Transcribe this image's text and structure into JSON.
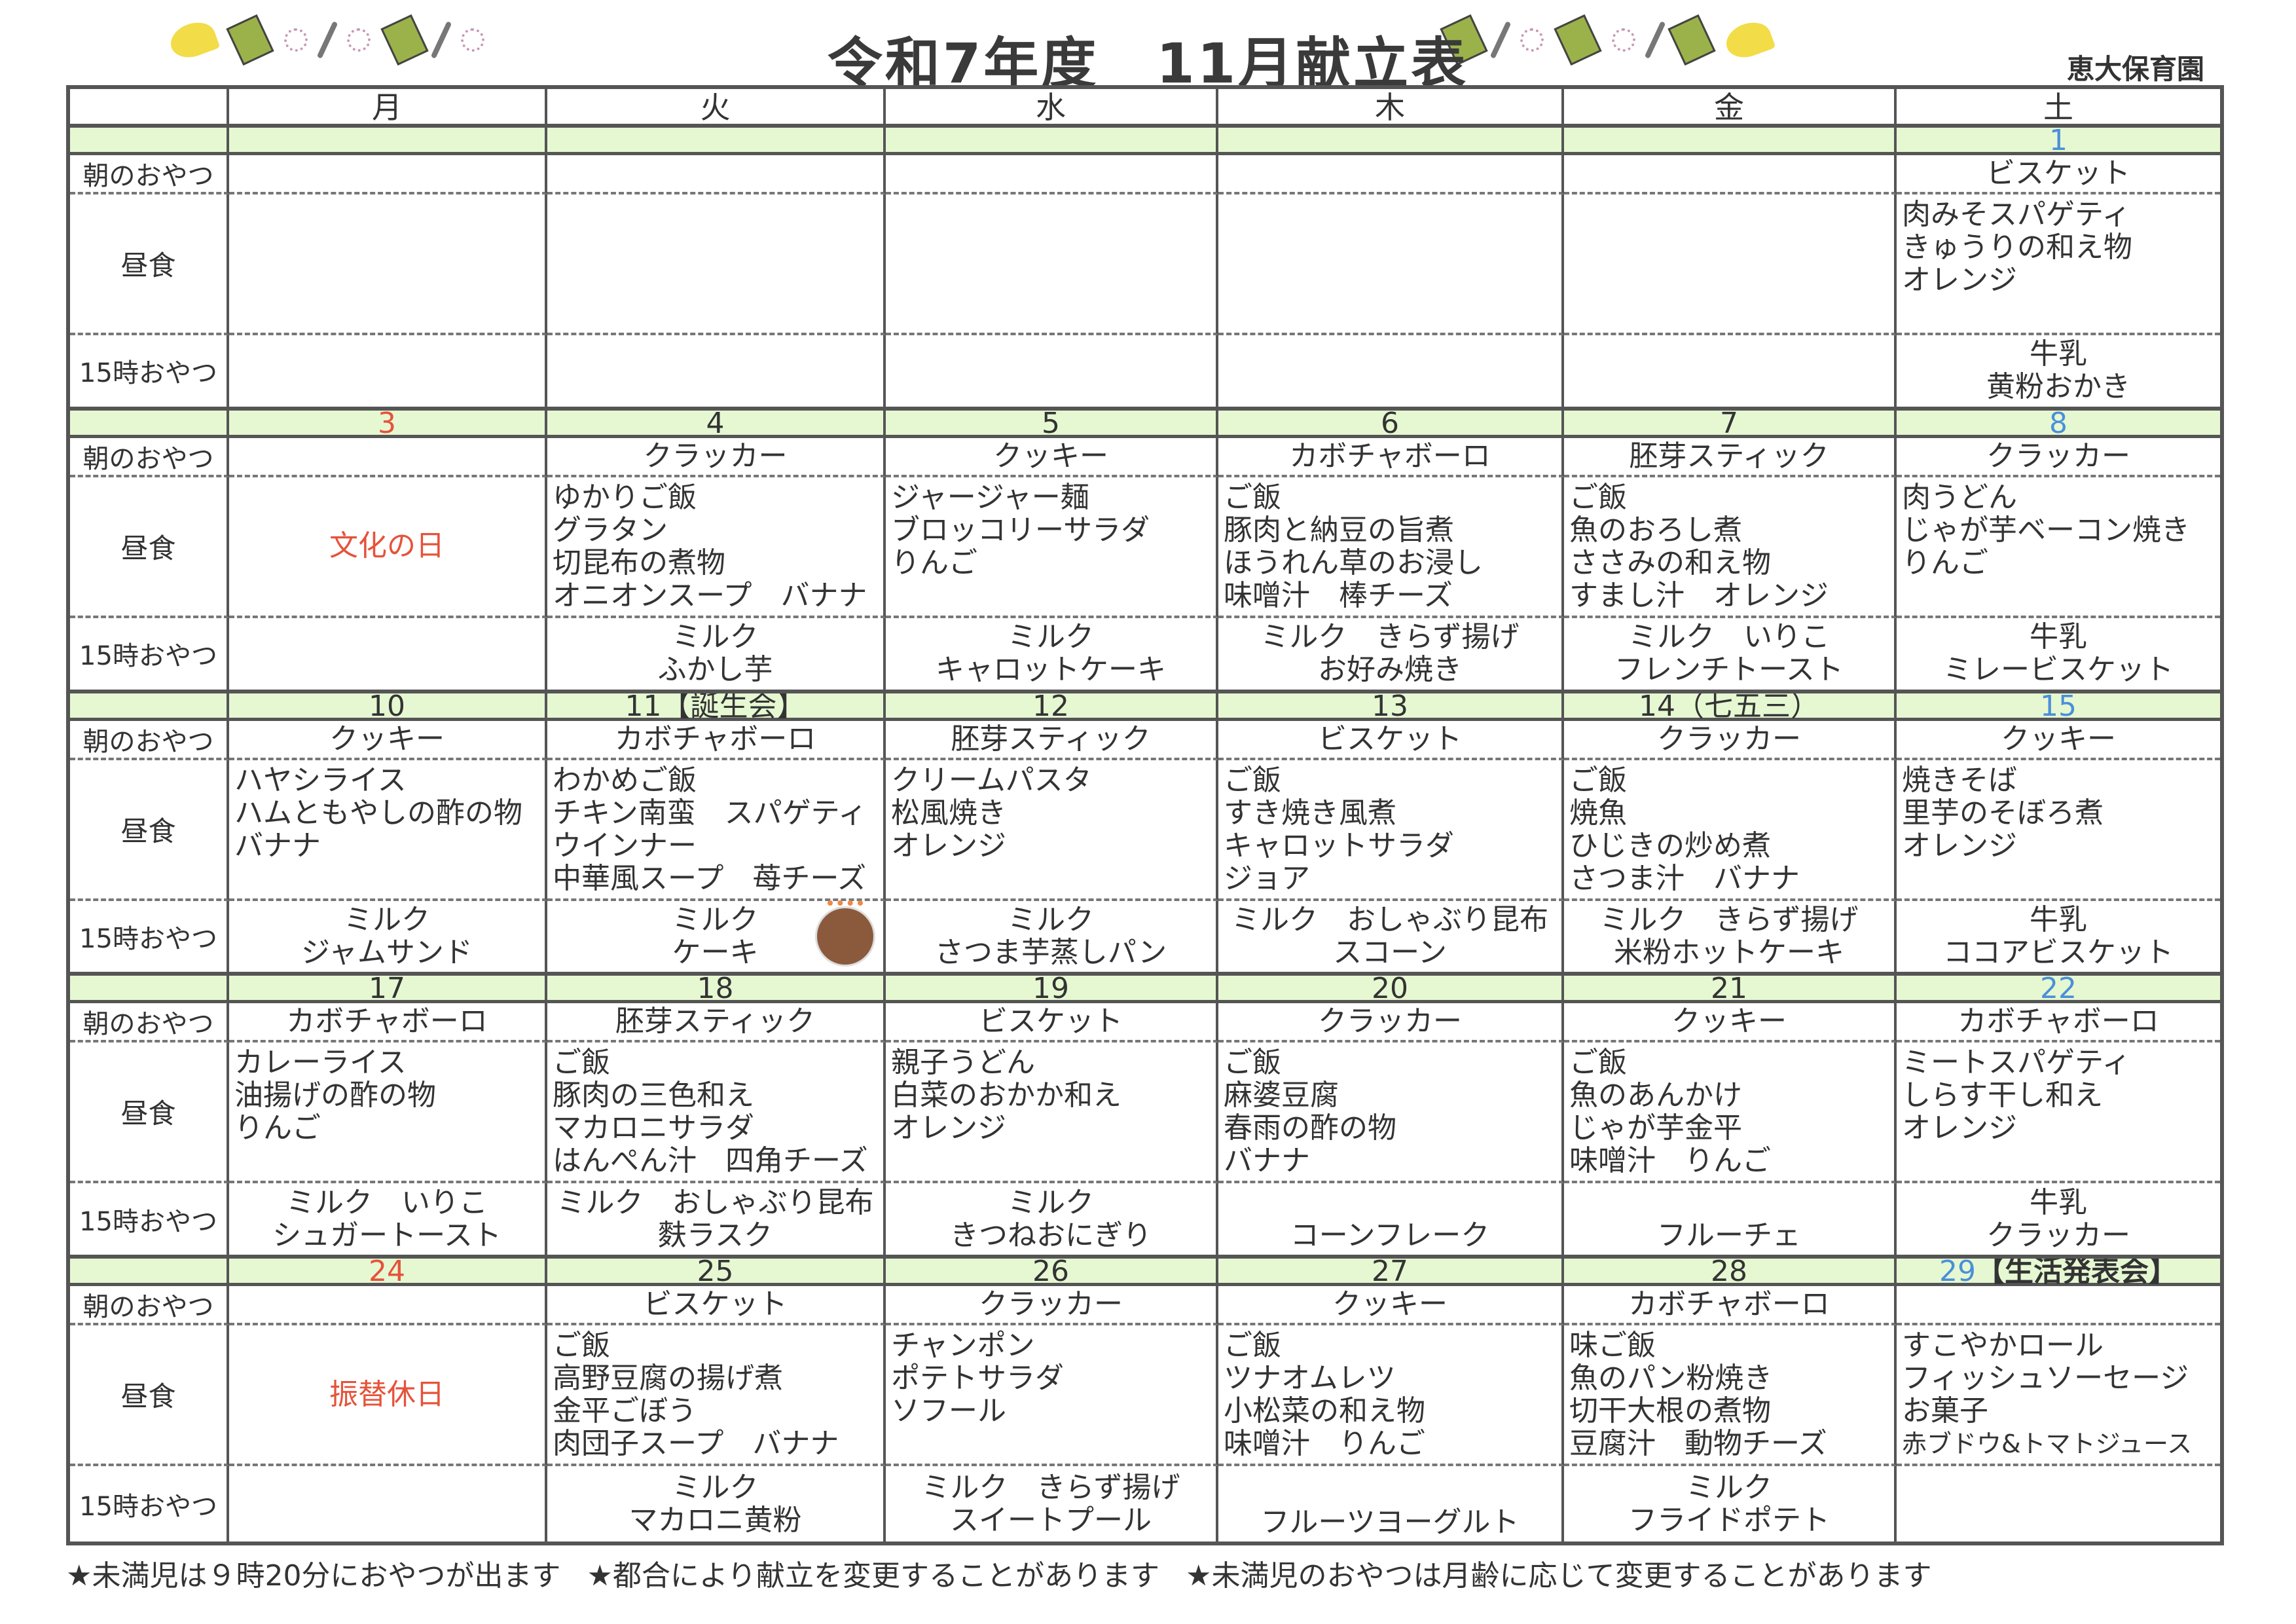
{
  "header": {
    "title": "令和7年度　11月献立表",
    "school": "恵大保育園"
  },
  "weekday_labels": [
    "月",
    "火",
    "水",
    "木",
    "金",
    "土"
  ],
  "row_labels": {
    "snack": "朝のおやつ",
    "lunch": "昼食",
    "pm": "15時おやつ"
  },
  "colors": {
    "saturday": "#4a90d9",
    "holiday": "#e5533a",
    "date_band": "#e6f8d2",
    "grid": "#555555"
  },
  "weeks": [
    {
      "days": [
        {
          "date": "",
          "snack": "",
          "lunch": [],
          "pm": []
        },
        {
          "date": "",
          "snack": "",
          "lunch": [],
          "pm": []
        },
        {
          "date": "",
          "snack": "",
          "lunch": [],
          "pm": []
        },
        {
          "date": "",
          "snack": "",
          "lunch": [],
          "pm": []
        },
        {
          "date": "",
          "snack": "",
          "lunch": [],
          "pm": []
        },
        {
          "date": "1",
          "date_type": "saturday",
          "snack": "ビスケット",
          "lunch": [
            "肉みそスパゲティ",
            "きゅうりの和え物",
            "オレンジ"
          ],
          "pm": [
            "牛乳",
            "黄粉おかき"
          ]
        }
      ]
    },
    {
      "days": [
        {
          "date": "3",
          "date_type": "holiday",
          "snack": "",
          "holiday": "文化の日",
          "lunch": [],
          "pm": []
        },
        {
          "date": "4",
          "snack": "クラッカー",
          "lunch": [
            "ゆかりご飯",
            "グラタン",
            "切昆布の煮物",
            "オニオンスープ　バナナ"
          ],
          "pm": [
            "ミルク",
            "ふかし芋"
          ]
        },
        {
          "date": "5",
          "snack": "クッキー",
          "lunch": [
            "ジャージャー麺",
            "ブロッコリーサラダ",
            "りんご"
          ],
          "pm": [
            "ミルク",
            "キャロットケーキ"
          ]
        },
        {
          "date": "6",
          "snack": "カボチャボーロ",
          "lunch": [
            "ご飯",
            "豚肉と納豆の旨煮",
            "ほうれん草のお浸し",
            "味噌汁　棒チーズ"
          ],
          "pm": [
            "ミルク　きらず揚げ",
            "お好み焼き"
          ]
        },
        {
          "date": "7",
          "snack": "胚芽スティック",
          "lunch": [
            "ご飯",
            "魚のおろし煮",
            "ささみの和え物",
            "すまし汁　オレンジ"
          ],
          "pm": [
            "ミルク　いりこ",
            "フレンチトースト"
          ]
        },
        {
          "date": "8",
          "date_type": "saturday",
          "snack": "クラッカー",
          "lunch": [
            "肉うどん",
            "じゃが芋ベーコン焼き",
            "りんご"
          ],
          "pm": [
            "牛乳",
            "ミレービスケット"
          ]
        }
      ]
    },
    {
      "days": [
        {
          "date": "10",
          "snack": "クッキー",
          "lunch": [
            "ハヤシライス",
            "ハムともやしの酢の物",
            "バナナ"
          ],
          "pm": [
            "ミルク",
            "ジャムサンド"
          ]
        },
        {
          "date": "11【誕生会】",
          "snack": "カボチャボーロ",
          "lunch": [
            "わかめご飯",
            "チキン南蛮　スパゲティ",
            "ウインナー",
            "中華風スープ　苺チーズ"
          ],
          "pm": [
            "ミルク",
            "ケーキ"
          ],
          "cake": "birthday"
        },
        {
          "date": "12",
          "snack": "胚芽スティック",
          "lunch": [
            "クリームパスタ",
            "松風焼き",
            "オレンジ"
          ],
          "pm": [
            "ミルク",
            "さつま芋蒸しパン"
          ]
        },
        {
          "date": "13",
          "snack": "ビスケット",
          "lunch": [
            "ご飯",
            "すき焼き風煮",
            "キャロットサラダ",
            "ジョア"
          ],
          "pm": [
            "ミルク　おしゃぶり昆布",
            "スコーン"
          ]
        },
        {
          "date": "14（七五三）",
          "snack": "クラッカー",
          "lunch": [
            "ご飯",
            "焼魚",
            "ひじきの炒め煮",
            "さつま汁　バナナ"
          ],
          "pm": [
            "ミルク　きらず揚げ",
            "米粉ホットケーキ"
          ]
        },
        {
          "date": "15",
          "date_type": "saturday",
          "snack": "クッキー",
          "lunch": [
            "焼きそば",
            "里芋のそぼろ煮",
            "オレンジ"
          ],
          "pm": [
            "牛乳",
            "ココアビスケット"
          ]
        }
      ]
    },
    {
      "days": [
        {
          "date": "17",
          "snack": "カボチャボーロ",
          "lunch": [
            "カレーライス",
            "油揚げの酢の物",
            "りんご"
          ],
          "pm": [
            "ミルク　いりこ",
            "シュガートースト"
          ]
        },
        {
          "date": "18",
          "snack": "胚芽スティック",
          "lunch": [
            "ご飯",
            "豚肉の三色和え",
            "マカロニサラダ",
            "はんぺん汁　四角チーズ"
          ],
          "pm": [
            "ミルク　おしゃぶり昆布",
            "麩ラスク"
          ]
        },
        {
          "date": "19",
          "snack": "ビスケット",
          "lunch": [
            "親子うどん",
            "白菜のおかか和え",
            "オレンジ"
          ],
          "pm": [
            "ミルク",
            "きつねおにぎり"
          ]
        },
        {
          "date": "20",
          "snack": "クラッカー",
          "lunch": [
            "ご飯",
            "麻婆豆腐",
            "春雨の酢の物",
            "バナナ"
          ],
          "pm": [
            "コーンフレーク"
          ],
          "pm_bottom": true
        },
        {
          "date": "21",
          "snack": "クッキー",
          "lunch": [
            "ご飯",
            "魚のあんかけ",
            "じゃが芋金平",
            "味噌汁　りんご"
          ],
          "pm": [
            "フルーチェ"
          ],
          "pm_bottom": true
        },
        {
          "date": "22",
          "date_type": "saturday",
          "snack": "カボチャボーロ",
          "lunch": [
            "ミートスパゲティ",
            "しらす干し和え",
            "オレンジ"
          ],
          "pm": [
            "牛乳",
            "クラッカー"
          ]
        }
      ]
    },
    {
      "days": [
        {
          "date": "24",
          "date_type": "holiday",
          "snack": "",
          "holiday": "振替休日",
          "lunch": [],
          "pm": []
        },
        {
          "date": "25",
          "snack": "ビスケット",
          "lunch": [
            "ご飯",
            "高野豆腐の揚げ煮",
            "金平ごぼう",
            "肉団子スープ　バナナ"
          ],
          "pm": [
            "ミルク",
            "マカロニ黄粉"
          ]
        },
        {
          "date": "26",
          "snack": "クラッカー",
          "lunch": [
            "チャンポン",
            "ポテトサラダ",
            "ソフール"
          ],
          "pm": [
            "ミルク　きらず揚げ",
            "スイートプール"
          ]
        },
        {
          "date": "27",
          "snack": "クッキー",
          "lunch": [
            "ご飯",
            "ツナオムレツ",
            "小松菜の和え物",
            "味噌汁　りんご"
          ],
          "pm": [
            "フルーツヨーグルト"
          ],
          "pm_bottom": true
        },
        {
          "date": "28",
          "snack": "カボチャボーロ",
          "lunch": [
            "味ご飯",
            "魚のパン粉焼き",
            "切干大根の煮物",
            "豆腐汁　動物チーズ"
          ],
          "pm": [
            "ミルク",
            "フライドポテト"
          ]
        },
        {
          "date": "29",
          "date_type": "saturday",
          "date_note": "【生活発表会】",
          "snack": "",
          "lunch": [
            "すこやかロール",
            "フィッシュソーセージ",
            "お菓子",
            "赤ブドウ&トマトジュース"
          ],
          "pm": []
        }
      ]
    }
  ],
  "footer": {
    "notes": [
      "★未満児は９時20分におやつが出ます",
      "★都合により献立を変更することがあります",
      "★未満児のおやつは月齢に応じて変更することがあります"
    ]
  }
}
